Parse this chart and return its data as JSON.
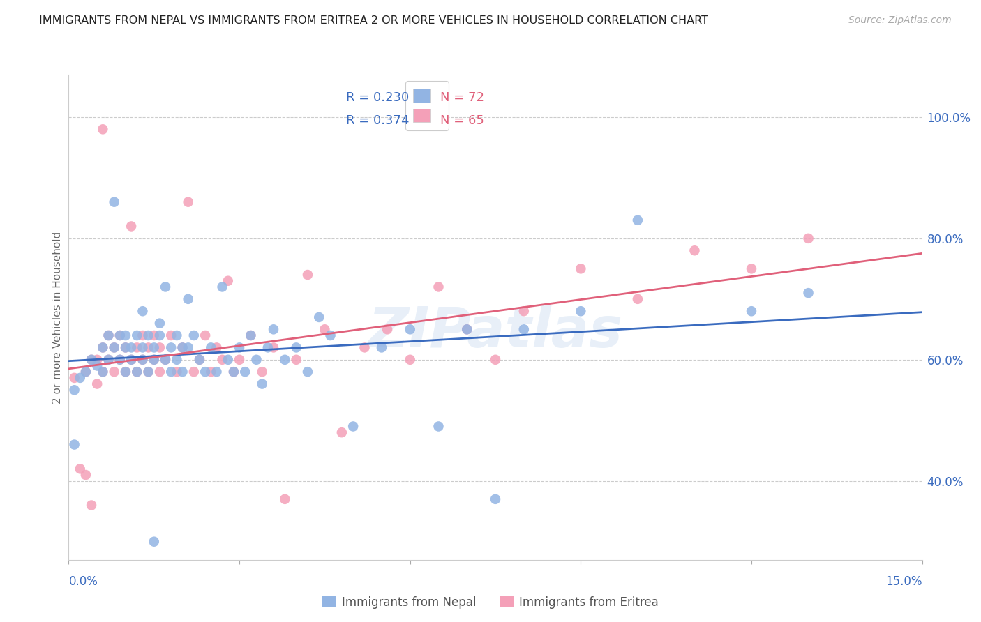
{
  "title": "IMMIGRANTS FROM NEPAL VS IMMIGRANTS FROM ERITREA 2 OR MORE VEHICLES IN HOUSEHOLD CORRELATION CHART",
  "source": "Source: ZipAtlas.com",
  "ylabel": "2 or more Vehicles in Household",
  "ytick_vals": [
    0.4,
    0.6,
    0.8,
    1.0
  ],
  "ytick_labels": [
    "40.0%",
    "60.0%",
    "80.0%",
    "100.0%"
  ],
  "xlim": [
    0.0,
    0.15
  ],
  "ylim": [
    0.27,
    1.07
  ],
  "nepal_color": "#92b4e3",
  "eritrea_color": "#f4a0b8",
  "nepal_line_color": "#3a6bbf",
  "eritrea_line_color": "#e0607a",
  "legend_R_nepal": "0.230",
  "legend_N_nepal": "72",
  "legend_R_eritrea": "0.374",
  "legend_N_eritrea": "65",
  "R_color": "#3a6bbf",
  "N_color": "#e0607a",
  "watermark": "ZIPatlas",
  "title_fontsize": 11.5,
  "source_fontsize": 10,
  "ytick_color": "#3a6bbf",
  "xtick_color": "#3a6bbf",
  "ylabel_color": "#666666",
  "grid_color": "#cccccc",
  "nepal_x": [
    0.001,
    0.001,
    0.002,
    0.003,
    0.004,
    0.005,
    0.006,
    0.006,
    0.007,
    0.007,
    0.008,
    0.008,
    0.009,
    0.009,
    0.01,
    0.01,
    0.01,
    0.011,
    0.011,
    0.012,
    0.012,
    0.013,
    0.013,
    0.013,
    0.014,
    0.014,
    0.015,
    0.015,
    0.016,
    0.016,
    0.017,
    0.017,
    0.018,
    0.018,
    0.019,
    0.019,
    0.02,
    0.02,
    0.021,
    0.021,
    0.022,
    0.023,
    0.024,
    0.025,
    0.026,
    0.027,
    0.028,
    0.029,
    0.03,
    0.031,
    0.032,
    0.033,
    0.034,
    0.035,
    0.036,
    0.038,
    0.04,
    0.042,
    0.044,
    0.046,
    0.05,
    0.055,
    0.06,
    0.065,
    0.07,
    0.075,
    0.08,
    0.09,
    0.1,
    0.12,
    0.13,
    0.015
  ],
  "nepal_y": [
    0.46,
    0.55,
    0.57,
    0.58,
    0.6,
    0.59,
    0.62,
    0.58,
    0.64,
    0.6,
    0.86,
    0.62,
    0.64,
    0.6,
    0.62,
    0.58,
    0.64,
    0.6,
    0.62,
    0.64,
    0.58,
    0.62,
    0.68,
    0.6,
    0.64,
    0.58,
    0.62,
    0.6,
    0.64,
    0.66,
    0.72,
    0.6,
    0.62,
    0.58,
    0.64,
    0.6,
    0.62,
    0.58,
    0.7,
    0.62,
    0.64,
    0.6,
    0.58,
    0.62,
    0.58,
    0.72,
    0.6,
    0.58,
    0.62,
    0.58,
    0.64,
    0.6,
    0.56,
    0.62,
    0.65,
    0.6,
    0.62,
    0.58,
    0.67,
    0.64,
    0.49,
    0.62,
    0.65,
    0.49,
    0.65,
    0.37,
    0.65,
    0.68,
    0.83,
    0.68,
    0.71,
    0.3
  ],
  "eritrea_x": [
    0.001,
    0.002,
    0.003,
    0.003,
    0.004,
    0.004,
    0.005,
    0.005,
    0.006,
    0.006,
    0.007,
    0.007,
    0.008,
    0.008,
    0.009,
    0.009,
    0.01,
    0.01,
    0.011,
    0.011,
    0.012,
    0.012,
    0.013,
    0.013,
    0.014,
    0.014,
    0.015,
    0.015,
    0.016,
    0.016,
    0.017,
    0.018,
    0.019,
    0.02,
    0.021,
    0.022,
    0.023,
    0.024,
    0.025,
    0.026,
    0.027,
    0.028,
    0.029,
    0.03,
    0.032,
    0.034,
    0.036,
    0.038,
    0.04,
    0.042,
    0.045,
    0.048,
    0.052,
    0.056,
    0.06,
    0.065,
    0.07,
    0.075,
    0.08,
    0.09,
    0.1,
    0.11,
    0.12,
    0.13,
    0.006
  ],
  "eritrea_y": [
    0.57,
    0.42,
    0.41,
    0.58,
    0.36,
    0.6,
    0.56,
    0.6,
    0.58,
    0.62,
    0.6,
    0.64,
    0.58,
    0.62,
    0.6,
    0.64,
    0.58,
    0.62,
    0.6,
    0.82,
    0.58,
    0.62,
    0.64,
    0.6,
    0.58,
    0.62,
    0.6,
    0.64,
    0.58,
    0.62,
    0.6,
    0.64,
    0.58,
    0.62,
    0.86,
    0.58,
    0.6,
    0.64,
    0.58,
    0.62,
    0.6,
    0.73,
    0.58,
    0.6,
    0.64,
    0.58,
    0.62,
    0.37,
    0.6,
    0.74,
    0.65,
    0.48,
    0.62,
    0.65,
    0.6,
    0.72,
    0.65,
    0.6,
    0.68,
    0.75,
    0.7,
    0.78,
    0.75,
    0.8,
    0.98
  ]
}
